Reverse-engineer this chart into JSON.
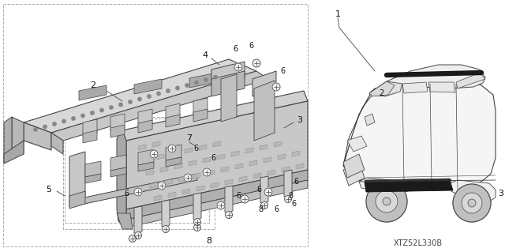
{
  "bg_color": "#ffffff",
  "diagram_code": "XTZ52L330B",
  "line_color": "#444444",
  "dash_color": "#999999",
  "fig_w": 6.4,
  "fig_h": 3.19,
  "dpi": 100
}
